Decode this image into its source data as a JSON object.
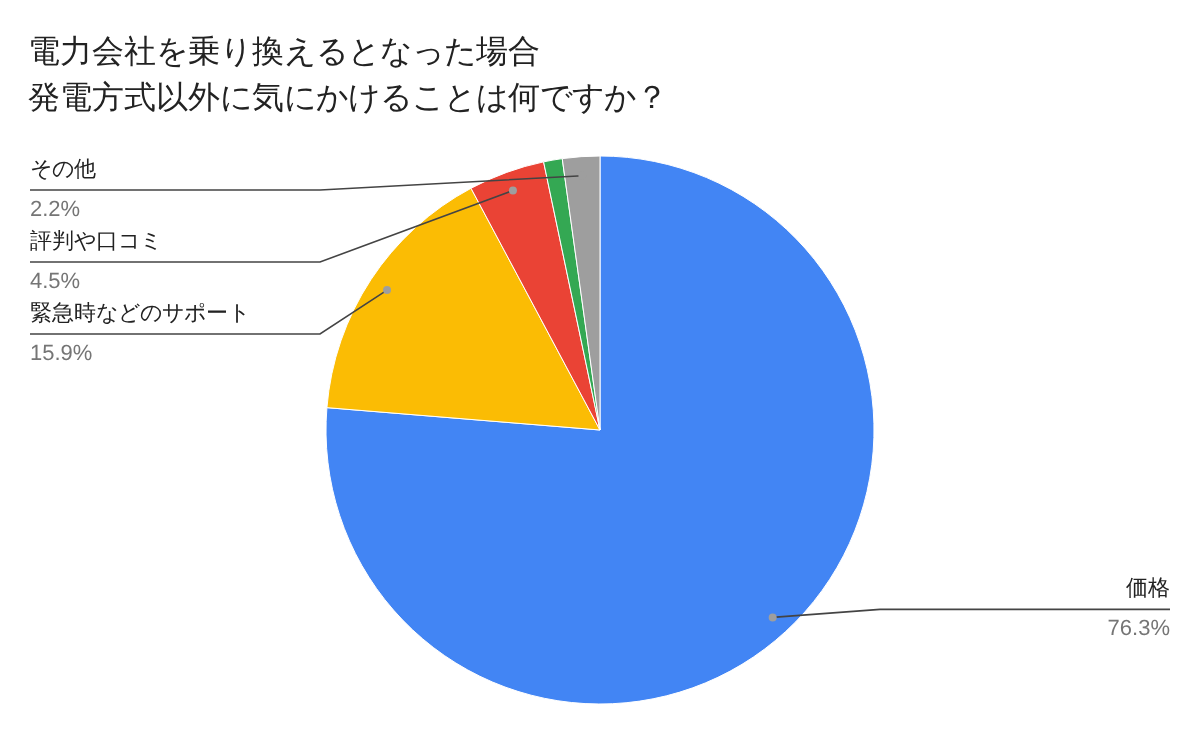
{
  "chart_data": {
    "type": "pie",
    "title": "電力会社を乗り換えるとなった場合発電方式以外に気にかけることは何ですか？",
    "categories": [
      "価格",
      "緊急時などのサポート",
      "評判や口コミ",
      null,
      "その他"
    ],
    "values": [
      76.3,
      15.9,
      4.5,
      1.1,
      2.2
    ],
    "colors": [
      "#4285f4",
      "#fbbc04",
      "#ea4335",
      "#34a853",
      "#9e9e9e"
    ],
    "value_labels": [
      "76.3%",
      "15.9%",
      "4.5%",
      null,
      "2.2%"
    ]
  }
}
